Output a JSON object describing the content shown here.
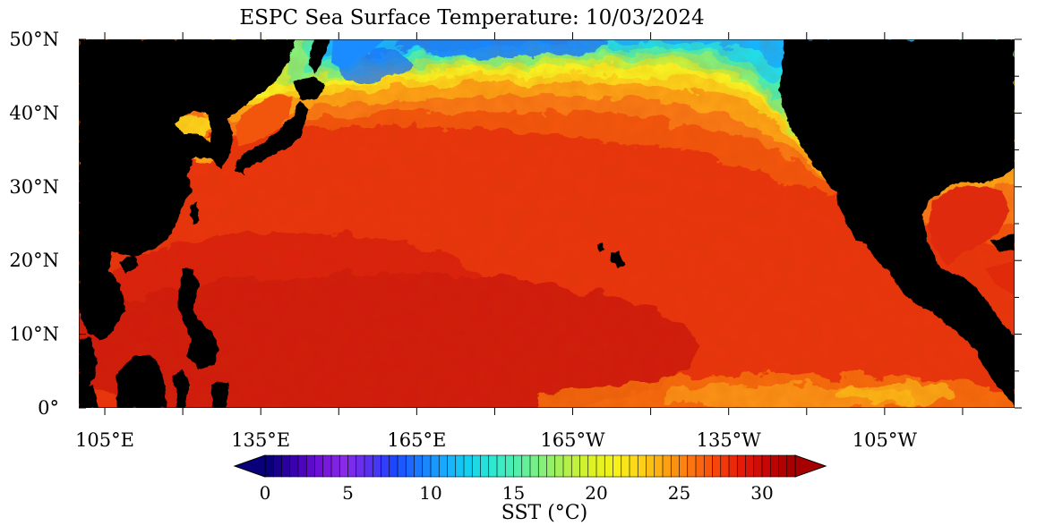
{
  "title": "ESPC Sea Surface Temperature: 10/03/2024",
  "y_axis": {
    "ticks": [
      {
        "value": 50,
        "label": "50°N"
      },
      {
        "value": 40,
        "label": "40°N"
      },
      {
        "value": 30,
        "label": "30°N"
      },
      {
        "value": 20,
        "label": "20°N"
      },
      {
        "value": 10,
        "label": "10°N"
      },
      {
        "value": 0,
        "label": "0°"
      }
    ]
  },
  "x_axis": {
    "ticks": [
      {
        "lon": 105,
        "label": "105°E"
      },
      {
        "lon": 135,
        "label": "135°E"
      },
      {
        "lon": 165,
        "label": "165°E"
      },
      {
        "lon": 195,
        "label": "165°W"
      },
      {
        "lon": 225,
        "label": "135°W"
      },
      {
        "lon": 255,
        "label": "105°W"
      }
    ]
  },
  "colorbar": {
    "label": "SST (°C)",
    "range": [
      0,
      32
    ],
    "ticks": [
      0,
      5,
      10,
      15,
      20,
      25,
      30
    ],
    "colors": [
      "#08007a",
      "#3a00b0",
      "#6f10d8",
      "#8a2ae8",
      "#5a30f0",
      "#1e46ff",
      "#1a78ff",
      "#18a8ff",
      "#14d0f0",
      "#2ee8d2",
      "#52f0a8",
      "#86f07a",
      "#b4f048",
      "#dcf224",
      "#f8f01a",
      "#fcd016",
      "#fca012",
      "#fc7410",
      "#f6460c",
      "#e61a08",
      "#c80606",
      "#a60000"
    ]
  },
  "map": {
    "lon_range": [
      100,
      280
    ],
    "lat_range": [
      0,
      50
    ],
    "ocean_color": "#e02a0a",
    "land_color": "#000000"
  }
}
